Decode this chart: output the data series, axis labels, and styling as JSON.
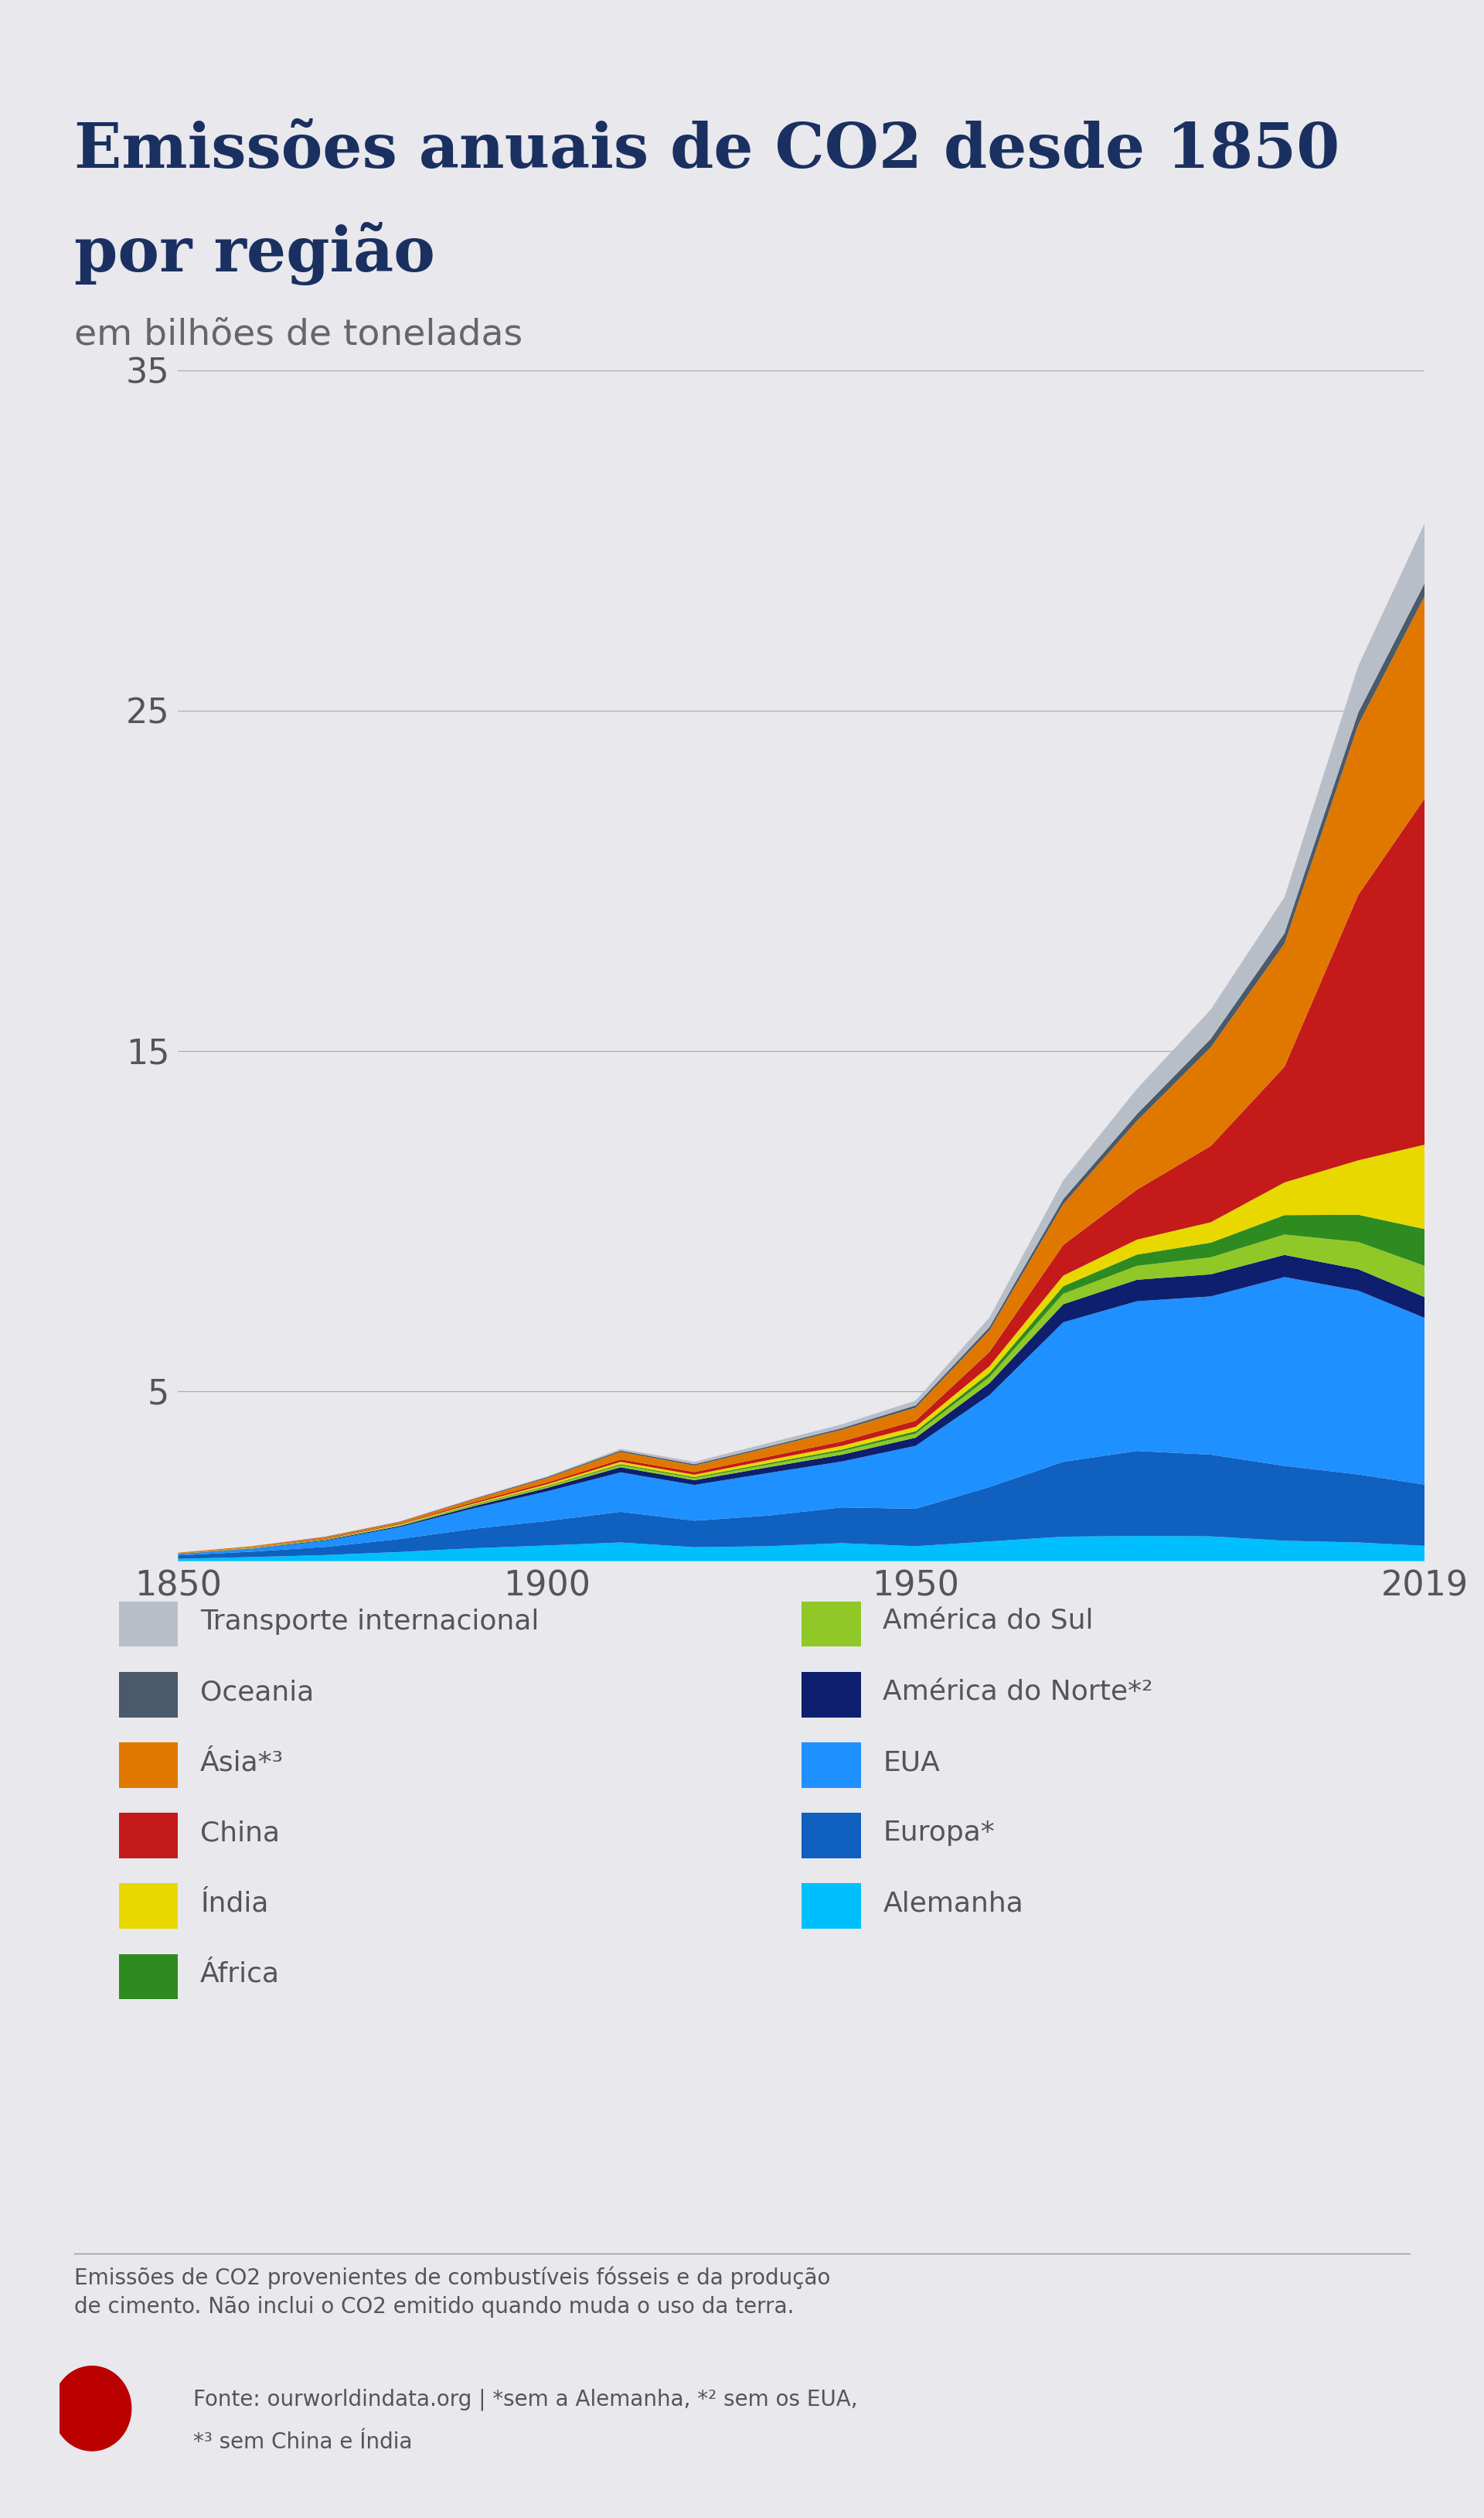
{
  "title_line1": "Emissões anuais de CO2 desde 1850",
  "title_line2": "por região",
  "subtitle": "em bilhões de toneladas",
  "bg_color": "#e8e8ed",
  "title_color": "#1a3060",
  "tick_color": "#555555",
  "years": [
    1850,
    1860,
    1870,
    1880,
    1890,
    1900,
    1910,
    1920,
    1930,
    1940,
    1950,
    1960,
    1970,
    1980,
    1990,
    2000,
    2010,
    2019
  ],
  "alemanha": [
    0.07,
    0.12,
    0.18,
    0.27,
    0.38,
    0.46,
    0.55,
    0.41,
    0.44,
    0.53,
    0.44,
    0.58,
    0.72,
    0.74,
    0.73,
    0.6,
    0.55,
    0.45
  ],
  "europa": [
    0.1,
    0.16,
    0.24,
    0.38,
    0.57,
    0.72,
    0.9,
    0.78,
    0.9,
    1.05,
    1.1,
    1.6,
    2.2,
    2.5,
    2.4,
    2.2,
    2.0,
    1.8
  ],
  "eua": [
    0.03,
    0.08,
    0.18,
    0.35,
    0.6,
    0.87,
    1.16,
    1.05,
    1.25,
    1.35,
    1.85,
    2.7,
    4.1,
    4.4,
    4.65,
    5.55,
    5.4,
    4.9
  ],
  "america_norte": [
    0.01,
    0.01,
    0.02,
    0.03,
    0.06,
    0.1,
    0.15,
    0.14,
    0.17,
    0.2,
    0.24,
    0.35,
    0.53,
    0.63,
    0.65,
    0.65,
    0.63,
    0.61
  ],
  "america_sul": [
    0.01,
    0.01,
    0.01,
    0.02,
    0.03,
    0.04,
    0.06,
    0.06,
    0.08,
    0.1,
    0.12,
    0.18,
    0.31,
    0.41,
    0.5,
    0.6,
    0.8,
    0.92
  ],
  "africa": [
    0.0,
    0.01,
    0.01,
    0.01,
    0.02,
    0.02,
    0.03,
    0.03,
    0.04,
    0.05,
    0.07,
    0.12,
    0.22,
    0.33,
    0.43,
    0.57,
    0.8,
    1.08
  ],
  "india": [
    0.0,
    0.01,
    0.01,
    0.02,
    0.03,
    0.05,
    0.07,
    0.07,
    0.09,
    0.11,
    0.13,
    0.2,
    0.31,
    0.44,
    0.6,
    0.96,
    1.6,
    2.48
  ],
  "china": [
    0.01,
    0.01,
    0.02,
    0.02,
    0.04,
    0.05,
    0.07,
    0.08,
    0.1,
    0.13,
    0.18,
    0.42,
    0.9,
    1.47,
    2.24,
    3.4,
    7.8,
    10.17
  ],
  "asia": [
    0.02,
    0.03,
    0.04,
    0.05,
    0.08,
    0.13,
    0.22,
    0.19,
    0.26,
    0.34,
    0.38,
    0.63,
    1.2,
    2.02,
    2.9,
    3.62,
    5.0,
    5.95
  ],
  "oceania": [
    0.0,
    0.0,
    0.01,
    0.01,
    0.02,
    0.03,
    0.04,
    0.04,
    0.04,
    0.05,
    0.07,
    0.1,
    0.15,
    0.2,
    0.25,
    0.3,
    0.36,
    0.38
  ],
  "transporte": [
    0.0,
    0.0,
    0.0,
    0.0,
    0.01,
    0.02,
    0.05,
    0.07,
    0.1,
    0.11,
    0.14,
    0.28,
    0.55,
    0.74,
    0.86,
    1.06,
    1.37,
    1.76
  ],
  "colors": {
    "alemanha": "#00bfff",
    "europa": "#1060c0",
    "eua": "#1e90ff",
    "america_norte": "#0d1f6e",
    "america_sul": "#90c828",
    "africa": "#2e8b20",
    "india": "#e8d800",
    "china": "#c41a1a",
    "asia": "#e07800",
    "oceania": "#4a5a6a",
    "transporte": "#b8bec8"
  },
  "legend_left": [
    {
      "label": "Transporte internacional",
      "color": "#b8bec8"
    },
    {
      "label": "Oceania",
      "color": "#4a5a6a"
    },
    {
      "label": "Ásia*³",
      "color": "#e07800"
    },
    {
      "label": "China",
      "color": "#c41a1a"
    },
    {
      "label": "Índia",
      "color": "#e8d800"
    },
    {
      "label": "África",
      "color": "#2e8b20"
    }
  ],
  "legend_right": [
    {
      "label": "América do Sul",
      "color": "#90c828"
    },
    {
      "label": "América do Norte*²",
      "color": "#0d1f6e"
    },
    {
      "label": "EUA",
      "color": "#1e90ff"
    },
    {
      "label": "Europa*",
      "color": "#1060c0"
    },
    {
      "label": "Alemanha",
      "color": "#00bfff"
    }
  ],
  "footnote1": "Emissões de CO2 provenientes de combustíveis fósseis e da produção",
  "footnote2": "de cimento. Não inclui o CO2 emitido quando muda o uso da terra.",
  "source1": "Fonte: ourworldindata.org | *sem a Alemanha, *² sem os EUA,",
  "source2": "*³ sem China e Índia",
  "yticks": [
    5,
    15,
    25,
    35
  ],
  "xticks": [
    1850,
    1900,
    1950,
    2019
  ]
}
